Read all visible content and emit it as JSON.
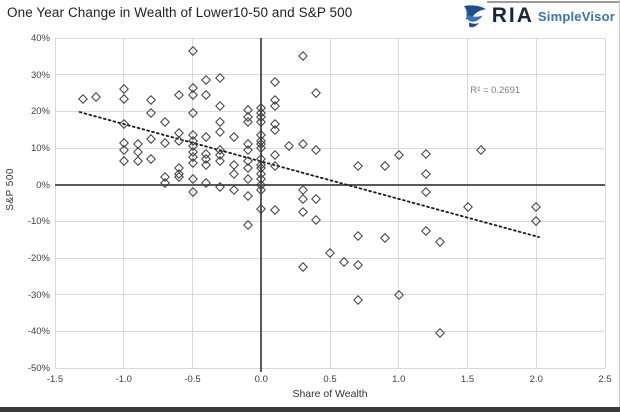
{
  "title": "One Year Change in Wealth of Lower10-50 and S&P 500",
  "logo": {
    "brand": "RIA",
    "product": "SimpleVisor",
    "icon": "eagle-icon",
    "brand_color": "#16243f",
    "product_color": "#3a73b0",
    "icon_dark": "#1d4f91",
    "icon_light": "#3a72b5"
  },
  "colors": {
    "marker": "#3d3d3d",
    "grid": "#d9d9d9",
    "zero_axis": "#595959",
    "trend": "#1a1a1a",
    "tick_text": "#404040",
    "annotation_text": "#7f7f7f"
  },
  "chart_data": {
    "type": "scatter",
    "title": "One Year Change in Wealth of Lower10-50 and S&P 500",
    "xlabel": "Share of Wealth",
    "ylabel": "S&P 500",
    "xlim": [
      -1.5,
      2.5
    ],
    "ylim": [
      -50,
      40
    ],
    "grid": true,
    "legend": "none",
    "marker": "hollow-diamond",
    "x_ticks": [
      [
        -1.5,
        "-1.5"
      ],
      [
        -1.0,
        "-1.0"
      ],
      [
        -0.5,
        "-0.5"
      ],
      [
        0.0,
        "0.0"
      ],
      [
        0.5,
        "0.5"
      ],
      [
        1.0,
        "1.0"
      ],
      [
        1.5,
        "1.5"
      ],
      [
        2.0,
        "2.0"
      ],
      [
        2.5,
        "2.5"
      ]
    ],
    "y_ticks": [
      [
        40,
        "40%"
      ],
      [
        30,
        "30%"
      ],
      [
        20,
        "20%"
      ],
      [
        10,
        "10%"
      ],
      [
        0,
        "0%"
      ],
      [
        -10,
        "-10%"
      ],
      [
        -20,
        "-20%"
      ],
      [
        -30,
        "-30%"
      ],
      [
        -40,
        "-40%"
      ],
      [
        -50,
        "-50%"
      ]
    ],
    "annotation": {
      "text": "R² = 0.2691",
      "x": 1.52,
      "y": 25.5
    },
    "r_squared": 0.2691,
    "trendline": {
      "style": "dotted",
      "x1": -1.32,
      "y1": 19.8,
      "x2": 2.02,
      "y2": -14.3
    },
    "points": [
      [
        -1.3,
        23.5
      ],
      [
        -1.2,
        24
      ],
      [
        -1.0,
        26
      ],
      [
        -1.0,
        23.5
      ],
      [
        -1.0,
        16.5
      ],
      [
        -1.0,
        11.5
      ],
      [
        -1.0,
        9.5
      ],
      [
        -1.0,
        6.5
      ],
      [
        -0.9,
        11
      ],
      [
        -0.9,
        9
      ],
      [
        -0.9,
        6.5
      ],
      [
        -0.8,
        23
      ],
      [
        -0.8,
        19.5
      ],
      [
        -0.8,
        12.5
      ],
      [
        -0.8,
        7
      ],
      [
        -0.7,
        17
      ],
      [
        -0.7,
        11.5
      ],
      [
        -0.7,
        2
      ],
      [
        -0.7,
        0.5
      ],
      [
        -0.6,
        24.5
      ],
      [
        -0.6,
        14
      ],
      [
        -0.6,
        12
      ],
      [
        -0.6,
        4.5
      ],
      [
        -0.6,
        3
      ],
      [
        -0.6,
        2
      ],
      [
        -0.5,
        36.5
      ],
      [
        -0.5,
        26.5
      ],
      [
        -0.5,
        24.5
      ],
      [
        -0.5,
        19.5
      ],
      [
        -0.5,
        13.5
      ],
      [
        -0.5,
        12
      ],
      [
        -0.5,
        10.5
      ],
      [
        -0.5,
        9
      ],
      [
        -0.5,
        7.5
      ],
      [
        -0.5,
        6
      ],
      [
        -0.5,
        1.5
      ],
      [
        -0.5,
        -2
      ],
      [
        -0.4,
        28.5
      ],
      [
        -0.4,
        24.5
      ],
      [
        -0.4,
        13
      ],
      [
        -0.4,
        8.5
      ],
      [
        -0.4,
        7
      ],
      [
        -0.4,
        5.5
      ],
      [
        -0.4,
        0.5
      ],
      [
        -0.3,
        29
      ],
      [
        -0.3,
        21.5
      ],
      [
        -0.3,
        17
      ],
      [
        -0.3,
        14.5
      ],
      [
        -0.3,
        9.5
      ],
      [
        -0.3,
        8
      ],
      [
        -0.3,
        6.5
      ],
      [
        -0.3,
        -0.5
      ],
      [
        -0.2,
        13
      ],
      [
        -0.2,
        5.5
      ],
      [
        -0.2,
        3
      ],
      [
        -0.2,
        -1.5
      ],
      [
        -0.1,
        20.5
      ],
      [
        -0.1,
        18.5
      ],
      [
        -0.1,
        17
      ],
      [
        -0.1,
        11
      ],
      [
        -0.1,
        9.5
      ],
      [
        -0.1,
        6.5
      ],
      [
        -0.1,
        4.5
      ],
      [
        -0.1,
        1.5
      ],
      [
        -0.1,
        -3
      ],
      [
        -0.1,
        -11
      ],
      [
        0.0,
        21
      ],
      [
        0.0,
        19.5
      ],
      [
        0.0,
        18.5
      ],
      [
        0.0,
        17
      ],
      [
        0.0,
        13.5
      ],
      [
        0.0,
        12
      ],
      [
        0.0,
        11
      ],
      [
        0.0,
        10
      ],
      [
        0.0,
        7
      ],
      [
        0.0,
        5.5
      ],
      [
        0.0,
        4.5
      ],
      [
        0.0,
        3
      ],
      [
        0.0,
        1.5
      ],
      [
        0.0,
        0
      ],
      [
        0.0,
        -1.5
      ],
      [
        0.0,
        -6.5
      ],
      [
        0.1,
        28
      ],
      [
        0.1,
        23
      ],
      [
        0.1,
        21.5
      ],
      [
        0.1,
        16.5
      ],
      [
        0.1,
        15
      ],
      [
        0.1,
        8
      ],
      [
        0.1,
        5
      ],
      [
        0.1,
        -7
      ],
      [
        0.2,
        10.5
      ],
      [
        0.3,
        35
      ],
      [
        0.3,
        11
      ],
      [
        0.3,
        -1.5
      ],
      [
        0.3,
        -4
      ],
      [
        0.3,
        -7.5
      ],
      [
        0.3,
        -22.5
      ],
      [
        0.4,
        25
      ],
      [
        0.4,
        9.5
      ],
      [
        0.4,
        -4
      ],
      [
        0.4,
        -9.5
      ],
      [
        0.5,
        -18.5
      ],
      [
        0.6,
        -21
      ],
      [
        0.7,
        5
      ],
      [
        0.7,
        -14
      ],
      [
        0.7,
        -22
      ],
      [
        0.7,
        -31.5
      ],
      [
        0.9,
        5
      ],
      [
        0.9,
        -14.5
      ],
      [
        1.0,
        8
      ],
      [
        1.0,
        -30
      ],
      [
        1.2,
        8.5
      ],
      [
        1.2,
        3
      ],
      [
        1.2,
        -2
      ],
      [
        1.2,
        -12.5
      ],
      [
        1.3,
        -15.5
      ],
      [
        1.3,
        -40.5
      ],
      [
        1.5,
        -6
      ],
      [
        1.6,
        9.5
      ],
      [
        2.0,
        -6
      ],
      [
        2.0,
        -10
      ]
    ]
  }
}
